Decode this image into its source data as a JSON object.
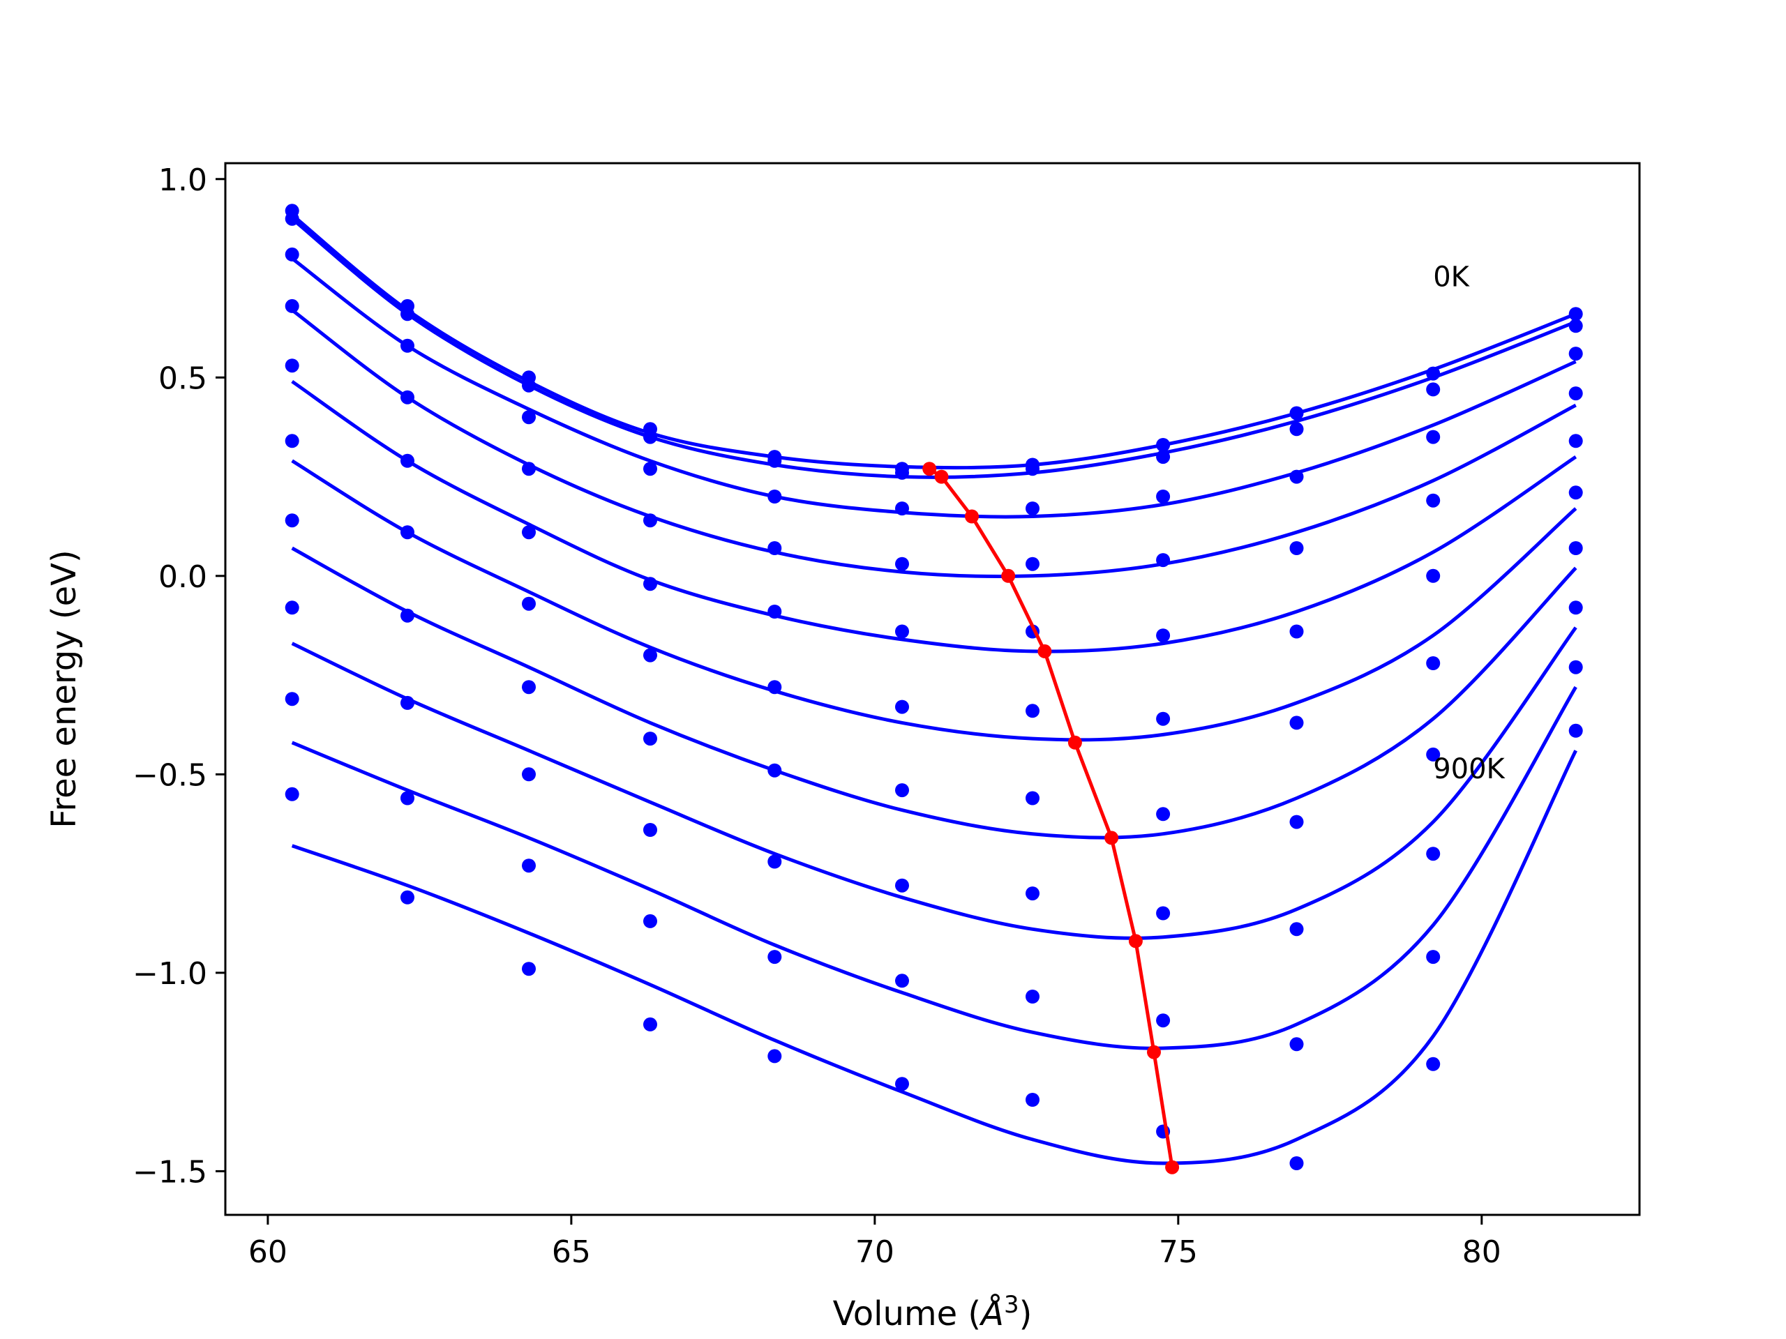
{
  "chart_data": {
    "type": "scatter",
    "title": "",
    "xlabel": "Volume (",
    "xlabel_symbol": "Å",
    "xlabel_sup": "3",
    "xlabel_close": ")",
    "ylabel": "Free energy (eV)",
    "xlim": [
      59.3,
      82.6
    ],
    "ylim": [
      -1.61,
      1.04
    ],
    "xticks": [
      60,
      65,
      70,
      75,
      80
    ],
    "xtick_labels": [
      "60",
      "65",
      "70",
      "75",
      "80"
    ],
    "yticks": [
      1.0,
      0.5,
      0.0,
      -0.5,
      -1.0,
      -1.5
    ],
    "ytick_labels": [
      "1.0",
      "0.5",
      "0.0",
      "−0.5",
      "−1.0",
      "−1.5"
    ],
    "grid": false,
    "annotations": [
      {
        "text": "0K",
        "x": 79.2,
        "y": 0.73
      },
      {
        "text": "900K",
        "x": 79.2,
        "y": -0.51
      }
    ],
    "data_color": "#0000ff",
    "min_color": "#ff0000",
    "volumes": [
      60.4,
      62.3,
      64.3,
      66.3,
      68.35,
      70.45,
      72.6,
      74.75,
      76.95,
      79.2,
      81.55
    ],
    "series": [
      {
        "values": [
          0.92,
          0.68,
          0.5,
          0.37,
          0.3,
          0.27,
          0.28,
          0.33,
          0.41,
          0.51,
          0.66
        ]
      },
      {
        "values": [
          0.9,
          0.66,
          0.48,
          0.35,
          0.29,
          0.26,
          0.27,
          0.3,
          0.37,
          0.47,
          0.63
        ]
      },
      {
        "values": [
          0.81,
          0.58,
          0.4,
          0.27,
          0.2,
          0.17,
          0.17,
          0.2,
          0.25,
          0.35,
          0.56
        ]
      },
      {
        "values": [
          0.68,
          0.45,
          0.27,
          0.14,
          0.07,
          0.03,
          0.03,
          0.04,
          0.07,
          0.19,
          0.46
        ]
      },
      {
        "values": [
          0.53,
          0.29,
          0.11,
          -0.02,
          -0.09,
          -0.14,
          -0.14,
          -0.15,
          -0.14,
          0.0,
          0.34
        ]
      },
      {
        "values": [
          0.34,
          0.11,
          -0.07,
          -0.2,
          -0.28,
          -0.33,
          -0.34,
          -0.36,
          -0.37,
          -0.22,
          0.21
        ]
      },
      {
        "values": [
          0.14,
          -0.1,
          -0.28,
          -0.41,
          -0.49,
          -0.54,
          -0.56,
          -0.6,
          -0.62,
          -0.45,
          0.07
        ]
      },
      {
        "values": [
          -0.08,
          -0.32,
          -0.5,
          -0.64,
          -0.72,
          -0.78,
          -0.8,
          -0.85,
          -0.89,
          -0.7,
          -0.08
        ]
      },
      {
        "values": [
          -0.31,
          -0.56,
          -0.73,
          -0.87,
          -0.96,
          -1.02,
          -1.06,
          -1.12,
          -1.18,
          -0.96,
          -0.23
        ]
      },
      {
        "values": [
          -0.55,
          -0.81,
          -0.99,
          -1.13,
          -1.21,
          -1.28,
          -1.32,
          -1.4,
          -1.48,
          -1.23,
          -0.39
        ]
      }
    ],
    "fits": [
      {
        "x": [
          60.4,
          62.3,
          64.3,
          66.3,
          68.35,
          70.45,
          72.6,
          74.75,
          76.95,
          79.2,
          81.55
        ],
        "y": [
          0.91,
          0.67,
          0.49,
          0.36,
          0.3,
          0.275,
          0.28,
          0.33,
          0.41,
          0.52,
          0.66
        ]
      },
      {
        "x": [
          60.4,
          62.3,
          64.3,
          66.3,
          68.35,
          70.45,
          72.6,
          74.75,
          76.95,
          79.2,
          81.55
        ],
        "y": [
          0.9,
          0.66,
          0.48,
          0.35,
          0.28,
          0.25,
          0.26,
          0.31,
          0.39,
          0.5,
          0.64
        ]
      },
      {
        "x": [
          60.4,
          62.3,
          64.3,
          66.3,
          68.35,
          70.45,
          72.6,
          74.75,
          76.95,
          79.2,
          81.55
        ],
        "y": [
          0.8,
          0.58,
          0.42,
          0.29,
          0.2,
          0.16,
          0.15,
          0.18,
          0.26,
          0.38,
          0.54
        ]
      },
      {
        "x": [
          60.4,
          62.3,
          64.3,
          66.3,
          68.35,
          70.45,
          72.6,
          74.75,
          76.95,
          79.2,
          81.55
        ],
        "y": [
          0.67,
          0.45,
          0.28,
          0.15,
          0.06,
          0.01,
          0.0,
          0.03,
          0.11,
          0.24,
          0.43
        ]
      },
      {
        "x": [
          60.4,
          62.3,
          64.3,
          66.3,
          68.35,
          70.45,
          72.6,
          74.75,
          76.95,
          79.2,
          81.55
        ],
        "y": [
          0.49,
          0.29,
          0.13,
          -0.01,
          -0.1,
          -0.16,
          -0.19,
          -0.17,
          -0.09,
          0.06,
          0.3
        ]
      },
      {
        "x": [
          60.4,
          62.3,
          64.3,
          66.3,
          68.35,
          70.45,
          72.6,
          74.75,
          76.95,
          79.2,
          81.55
        ],
        "y": [
          0.29,
          0.11,
          -0.04,
          -0.18,
          -0.29,
          -0.37,
          -0.41,
          -0.4,
          -0.32,
          -0.15,
          0.17
        ]
      },
      {
        "x": [
          60.4,
          62.3,
          64.3,
          66.3,
          68.35,
          70.45,
          72.6,
          74.75,
          76.95,
          79.2,
          81.55
        ],
        "y": [
          0.07,
          -0.09,
          -0.23,
          -0.37,
          -0.49,
          -0.59,
          -0.65,
          -0.65,
          -0.56,
          -0.36,
          0.02
        ]
      },
      {
        "x": [
          60.4,
          62.3,
          64.3,
          66.3,
          68.35,
          70.45,
          72.6,
          74.75,
          76.95,
          79.2,
          81.55
        ],
        "y": [
          -0.17,
          -0.31,
          -0.44,
          -0.57,
          -0.7,
          -0.81,
          -0.89,
          -0.91,
          -0.84,
          -0.62,
          -0.13
        ]
      },
      {
        "x": [
          60.4,
          62.3,
          64.3,
          66.3,
          68.35,
          70.45,
          72.6,
          74.75,
          76.95,
          79.2,
          81.55
        ],
        "y": [
          -0.42,
          -0.54,
          -0.66,
          -0.79,
          -0.93,
          -1.05,
          -1.15,
          -1.19,
          -1.13,
          -0.88,
          -0.28
        ]
      },
      {
        "x": [
          60.4,
          62.3,
          64.3,
          66.3,
          68.35,
          70.45,
          72.6,
          74.75,
          76.95,
          79.2,
          81.55
        ],
        "y": [
          -0.68,
          -0.78,
          -0.9,
          -1.03,
          -1.17,
          -1.3,
          -1.42,
          -1.48,
          -1.42,
          -1.16,
          -0.44
        ]
      }
    ],
    "minima": {
      "x": [
        70.9,
        71.1,
        71.6,
        72.2,
        72.8,
        73.3,
        73.9,
        74.3,
        74.6,
        74.9
      ],
      "y": [
        0.27,
        0.25,
        0.15,
        0.0,
        -0.19,
        -0.42,
        -0.66,
        -0.92,
        -1.2,
        -1.49
      ]
    }
  }
}
